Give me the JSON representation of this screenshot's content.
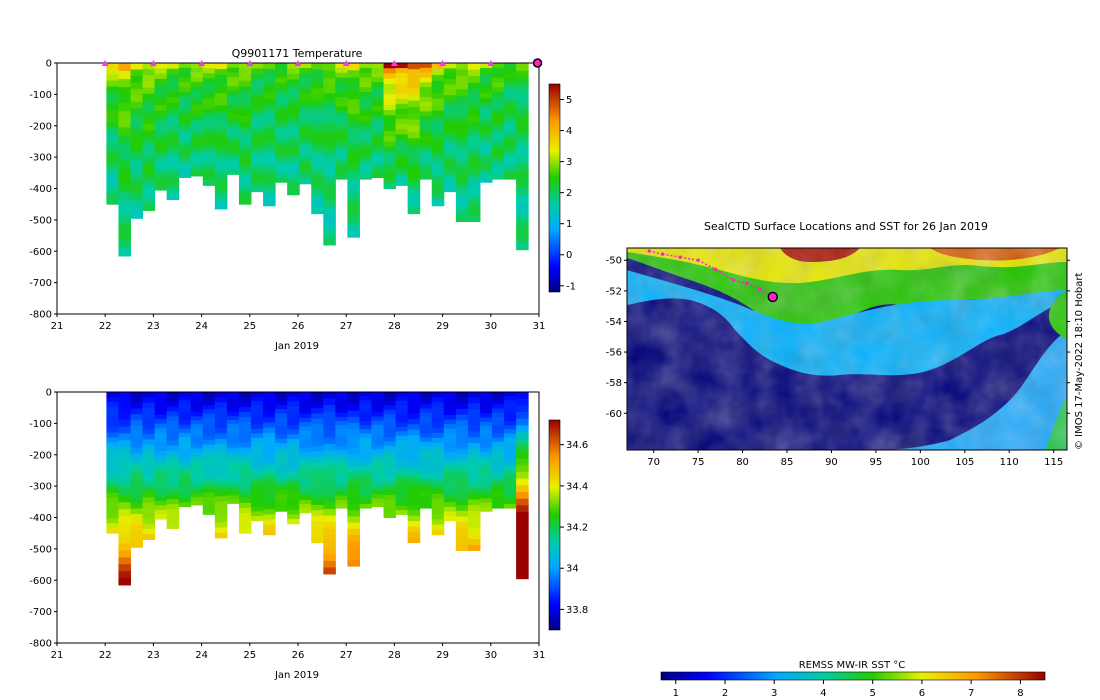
{
  "chart_data": [
    {
      "type": "heatmap",
      "title": "Q9901171  Temperature",
      "xlabel": "Jan 2019",
      "ylabel": "",
      "x_ticks": [
        "21",
        "22",
        "23",
        "24",
        "25",
        "26",
        "27",
        "28",
        "29",
        "30",
        "31"
      ],
      "x_range": [
        21,
        31
      ],
      "y_ticks": [
        0,
        -100,
        -200,
        -300,
        -400,
        -500,
        -600,
        -700,
        -800
      ],
      "ylim": [
        -800,
        0
      ],
      "colorbar": {
        "ticks": [
          5,
          4,
          3,
          2,
          1,
          0,
          -1
        ],
        "range": [
          -1.2,
          5.5
        ]
      },
      "colormap": "jet-like",
      "marker_days": [
        22,
        23,
        24,
        25,
        26,
        27,
        28,
        29,
        30
      ],
      "profiles": [
        {
          "day": 22.15,
          "max_depth": -450,
          "top_value": 3.6,
          "bottom_value": 1.7
        },
        {
          "day": 22.4,
          "max_depth": -615,
          "top_value": 3.8,
          "bottom_value": 1.8
        },
        {
          "day": 22.65,
          "max_depth": -495,
          "top_value": 3.5,
          "bottom_value": 1.8
        },
        {
          "day": 22.9,
          "max_depth": -470,
          "top_value": 3.4,
          "bottom_value": 1.9
        },
        {
          "day": 23.15,
          "max_depth": -405,
          "top_value": 3.2,
          "bottom_value": 1.9
        },
        {
          "day": 23.4,
          "max_depth": -435,
          "top_value": 3.0,
          "bottom_value": 1.8
        },
        {
          "day": 23.65,
          "max_depth": -365,
          "top_value": 3.1,
          "bottom_value": 1.8
        },
        {
          "day": 23.9,
          "max_depth": -360,
          "top_value": 3.2,
          "bottom_value": 1.9
        },
        {
          "day": 24.15,
          "max_depth": -390,
          "top_value": 3.1,
          "bottom_value": 1.9
        },
        {
          "day": 24.4,
          "max_depth": -465,
          "top_value": 3.3,
          "bottom_value": 1.8
        },
        {
          "day": 24.65,
          "max_depth": -355,
          "top_value": 3.2,
          "bottom_value": 1.9
        },
        {
          "day": 24.9,
          "max_depth": -450,
          "top_value": 3.0,
          "bottom_value": 1.9
        },
        {
          "day": 25.15,
          "max_depth": -410,
          "top_value": 2.6,
          "bottom_value": 1.9
        },
        {
          "day": 25.4,
          "max_depth": -455,
          "top_value": 2.8,
          "bottom_value": 1.8
        },
        {
          "day": 25.65,
          "max_depth": -380,
          "top_value": 2.7,
          "bottom_value": 1.9
        },
        {
          "day": 25.9,
          "max_depth": -420,
          "top_value": 2.9,
          "bottom_value": 1.8
        },
        {
          "day": 26.15,
          "max_depth": -385,
          "top_value": 2.8,
          "bottom_value": 1.9
        },
        {
          "day": 26.4,
          "max_depth": -480,
          "top_value": 2.9,
          "bottom_value": 1.8
        },
        {
          "day": 26.65,
          "max_depth": -580,
          "top_value": 3.0,
          "bottom_value": 1.7
        },
        {
          "day": 26.9,
          "max_depth": -370,
          "top_value": 3.2,
          "bottom_value": 1.9
        },
        {
          "day": 27.15,
          "max_depth": -555,
          "top_value": 3.4,
          "bottom_value": 1.8
        },
        {
          "day": 27.4,
          "max_depth": -370,
          "top_value": 3.3,
          "bottom_value": 1.9
        },
        {
          "day": 27.65,
          "max_depth": -365,
          "top_value": 3.1,
          "bottom_value": 1.9
        },
        {
          "day": 27.9,
          "max_depth": -400,
          "top_value": 5.3,
          "bottom_value": 1.9
        },
        {
          "day": 28.15,
          "max_depth": -390,
          "top_value": 5.4,
          "bottom_value": 1.9
        },
        {
          "day": 28.4,
          "max_depth": -480,
          "top_value": 5.2,
          "bottom_value": 1.8
        },
        {
          "day": 28.65,
          "max_depth": -370,
          "top_value": 4.8,
          "bottom_value": 1.8
        },
        {
          "day": 28.9,
          "max_depth": -455,
          "top_value": 3.6,
          "bottom_value": 1.8
        },
        {
          "day": 29.15,
          "max_depth": -410,
          "top_value": 3.4,
          "bottom_value": 1.8
        },
        {
          "day": 29.4,
          "max_depth": -505,
          "top_value": 3.2,
          "bottom_value": 1.8
        },
        {
          "day": 29.65,
          "max_depth": -505,
          "top_value": 3.1,
          "bottom_value": 1.8
        },
        {
          "day": 29.9,
          "max_depth": -380,
          "top_value": 3.0,
          "bottom_value": 1.8
        },
        {
          "day": 30.15,
          "max_depth": -370,
          "top_value": 3.0,
          "bottom_value": 1.9
        },
        {
          "day": 30.4,
          "max_depth": -370,
          "top_value": 2.4,
          "bottom_value": 1.9
        },
        {
          "day": 30.65,
          "max_depth": -595,
          "top_value": 2.5,
          "bottom_value": 1.8
        }
      ]
    },
    {
      "type": "heatmap",
      "title": "",
      "xlabel": "Jan 2019",
      "ylabel": "",
      "x_ticks": [
        "21",
        "22",
        "23",
        "24",
        "25",
        "26",
        "27",
        "28",
        "29",
        "30",
        "31"
      ],
      "x_range": [
        21,
        31
      ],
      "y_ticks": [
        0,
        -100,
        -200,
        -300,
        -400,
        -500,
        -600,
        -700,
        -800
      ],
      "ylim": [
        -800,
        0
      ],
      "colorbar": {
        "ticks": [
          "34.6",
          "34.4",
          "34.2",
          "34",
          "33.8"
        ],
        "range": [
          33.7,
          34.72
        ]
      },
      "colormap": "jet-like"
    },
    {
      "type": "heatmap",
      "title": "SealCTD Surface Locations and SST for 26 Jan 2019",
      "x_ticks": [
        "70",
        "75",
        "80",
        "85",
        "90",
        "95",
        "100",
        "105",
        "110",
        "115"
      ],
      "x_range": [
        67,
        116.5
      ],
      "y_ticks": [
        "-50",
        "-52",
        "-54",
        "-56",
        "-58",
        "-60"
      ],
      "y_range": [
        -49.2,
        -62.4
      ],
      "track": [
        [
          69.5,
          -49.4
        ],
        [
          71,
          -49.6
        ],
        [
          73,
          -49.8
        ],
        [
          75,
          -50.0
        ],
        [
          77,
          -50.6
        ],
        [
          79,
          -51.3
        ],
        [
          80.5,
          -51.5
        ],
        [
          82,
          -51.9
        ],
        [
          83.4,
          -52.4
        ]
      ],
      "last_position": [
        83.4,
        -52.4
      ],
      "colorbar": {
        "label": "REMSS MW-IR SST °C",
        "ticks": [
          "1",
          "2",
          "3",
          "4",
          "5",
          "6",
          "7",
          "8"
        ],
        "range": [
          0.7,
          8.5
        ]
      },
      "watermark": "© IMOS 17-May-2022 18:10 Hobart"
    }
  ]
}
